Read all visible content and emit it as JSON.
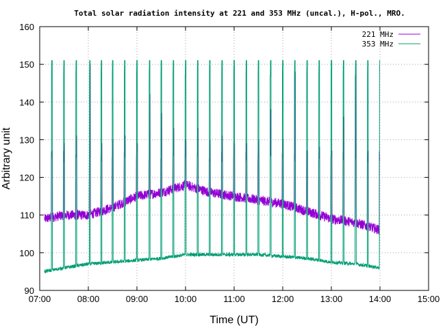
{
  "chart_data": {
    "type": "line",
    "title": "Total solar radiation intensity at 221 and 353 MHz (uncal.), H-pol., MRO.",
    "xlabel": "Time (UT)",
    "ylabel": "Arbitrary unit",
    "xlim": [
      7.0,
      15.0
    ],
    "ylim": [
      90,
      160
    ],
    "xticks": [
      7,
      8,
      9,
      10,
      11,
      12,
      13,
      14,
      15
    ],
    "xtick_labels": [
      "07:00",
      "08:00",
      "09:00",
      "10:00",
      "11:00",
      "12:00",
      "13:00",
      "14:00",
      "15:00"
    ],
    "yticks": [
      90,
      100,
      110,
      120,
      130,
      140,
      150,
      160
    ],
    "ytick_labels": [
      "90",
      "100",
      "110",
      "120",
      "130",
      "140",
      "150",
      "160"
    ],
    "grid": true,
    "legend_position": "top-right",
    "calibration_times": [
      7.25,
      7.5,
      7.75,
      8.03,
      8.27,
      8.5,
      8.75,
      9.0,
      9.26,
      9.5,
      9.75,
      10.0,
      10.25,
      10.5,
      10.75,
      11.0,
      11.25,
      11.5,
      11.75,
      12.0,
      12.25,
      12.5,
      12.75,
      13.0,
      13.25,
      13.5,
      13.75,
      14.0
    ],
    "series": [
      {
        "name": "221 MHz",
        "color": "#9400d3",
        "baseline_x": [
          7.1,
          7.5,
          8.0,
          8.5,
          9.0,
          9.5,
          10.0,
          10.5,
          11.0,
          11.5,
          12.0,
          12.5,
          13.0,
          13.5,
          14.0
        ],
        "baseline_y": [
          109,
          110,
          110,
          112,
          115,
          116,
          118,
          116,
          115,
          114,
          113,
          111,
          109,
          108,
          106
        ],
        "peak_y": [
          127,
          129,
          131,
          150,
          129,
          130,
          131,
          129,
          142,
          137,
          133,
          130,
          133,
          130,
          131,
          129,
          129,
          130,
          138,
          130,
          148,
          127,
          128,
          127,
          136,
          150,
          127,
          128
        ]
      },
      {
        "name": "353 MHz",
        "color": "#009e73",
        "baseline_x": [
          7.1,
          7.5,
          8.0,
          8.5,
          9.0,
          9.5,
          10.0,
          10.5,
          11.0,
          11.5,
          12.0,
          12.5,
          13.0,
          13.5,
          14.0
        ],
        "baseline_y": [
          95,
          96,
          97,
          97.5,
          98,
          98.5,
          99.5,
          99.5,
          99.5,
          99.5,
          99,
          98.5,
          97.5,
          97,
          96
        ],
        "peak_y": [
          151,
          151,
          151,
          151,
          151,
          151,
          151,
          151,
          151,
          151,
          151,
          151,
          151,
          151,
          151,
          151,
          151,
          151,
          151,
          151,
          151,
          151,
          151,
          151,
          151,
          151,
          151,
          151
        ]
      }
    ]
  }
}
